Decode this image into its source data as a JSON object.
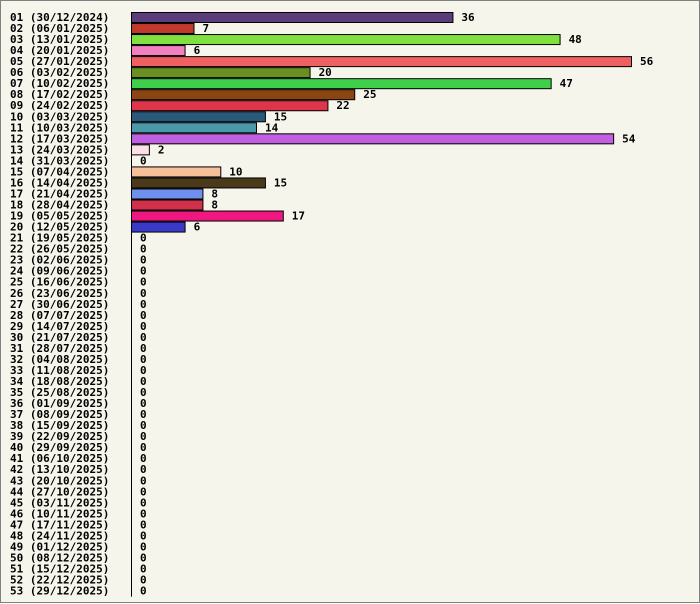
{
  "chart_data": {
    "type": "bar",
    "orientation": "horizontal",
    "title": "",
    "xlabel": "",
    "ylabel": "",
    "xlim": [
      0,
      56
    ],
    "grid": false,
    "legend": "none",
    "categories": [
      "01 (30/12/2024)",
      "02 (06/01/2025)",
      "03 (13/01/2025)",
      "04 (20/01/2025)",
      "05 (27/01/2025)",
      "06 (03/02/2025)",
      "07 (10/02/2025)",
      "08 (17/02/2025)",
      "09 (24/02/2025)",
      "10 (03/03/2025)",
      "11 (10/03/2025)",
      "12 (17/03/2025)",
      "13 (24/03/2025)",
      "14 (31/03/2025)",
      "15 (07/04/2025)",
      "16 (14/04/2025)",
      "17 (21/04/2025)",
      "18 (28/04/2025)",
      "19 (05/05/2025)",
      "20 (12/05/2025)",
      "21 (19/05/2025)",
      "22 (26/05/2025)",
      "23 (02/06/2025)",
      "24 (09/06/2025)",
      "25 (16/06/2025)",
      "26 (23/06/2025)",
      "27 (30/06/2025)",
      "28 (07/07/2025)",
      "29 (14/07/2025)",
      "30 (21/07/2025)",
      "31 (28/07/2025)",
      "32 (04/08/2025)",
      "33 (11/08/2025)",
      "34 (18/08/2025)",
      "35 (25/08/2025)",
      "36 (01/09/2025)",
      "37 (08/09/2025)",
      "38 (15/09/2025)",
      "39 (22/09/2025)",
      "40 (29/09/2025)",
      "41 (06/10/2025)",
      "42 (13/10/2025)",
      "43 (20/10/2025)",
      "44 (27/10/2025)",
      "45 (03/11/2025)",
      "46 (10/11/2025)",
      "47 (17/11/2025)",
      "48 (24/11/2025)",
      "49 (01/12/2025)",
      "50 (08/12/2025)",
      "51 (15/12/2025)",
      "52 (22/12/2025)",
      "53 (29/12/2025)"
    ],
    "values": [
      36,
      7,
      48,
      6,
      56,
      20,
      47,
      25,
      22,
      15,
      14,
      54,
      2,
      0,
      10,
      15,
      8,
      8,
      17,
      6,
      0,
      0,
      0,
      0,
      0,
      0,
      0,
      0,
      0,
      0,
      0,
      0,
      0,
      0,
      0,
      0,
      0,
      0,
      0,
      0,
      0,
      0,
      0,
      0,
      0,
      0,
      0,
      0,
      0,
      0,
      0,
      0,
      0
    ],
    "colors": [
      "#5a3d7a",
      "#c0392b",
      "#7fe040",
      "#f27fc0",
      "#f06060",
      "#6b8e23",
      "#3ed04a",
      "#8b4513",
      "#e0344a",
      "#2a5a7a",
      "#4a9aaa",
      "#c060e0",
      "#fce0e8",
      "#ffffff",
      "#f8c098",
      "#4a3a1a",
      "#7090f0",
      "#d0304a",
      "#f01880",
      "#3a3ac8",
      "#ffffff",
      "#ffffff",
      "#ffffff",
      "#ffffff",
      "#ffffff",
      "#ffffff",
      "#ffffff",
      "#ffffff",
      "#ffffff",
      "#ffffff",
      "#ffffff",
      "#ffffff",
      "#ffffff",
      "#ffffff",
      "#ffffff",
      "#ffffff",
      "#ffffff",
      "#ffffff",
      "#ffffff",
      "#ffffff",
      "#ffffff",
      "#ffffff",
      "#ffffff",
      "#ffffff",
      "#ffffff",
      "#ffffff",
      "#ffffff",
      "#ffffff",
      "#ffffff",
      "#ffffff",
      "#ffffff",
      "#ffffff",
      "#ffffff"
    ]
  }
}
